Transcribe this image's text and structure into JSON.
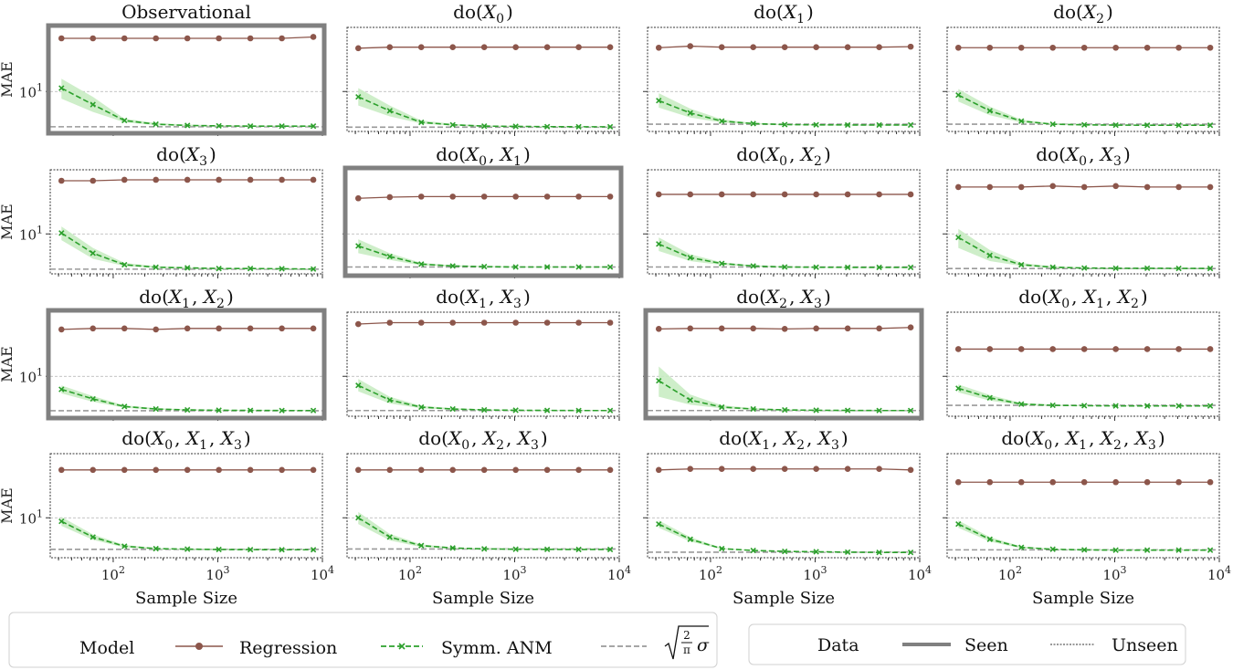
{
  "chart_data": {
    "type": "line",
    "figure": "small-multiples",
    "x_values": [
      32,
      64,
      128,
      256,
      512,
      1024,
      2048,
      4096,
      8192
    ],
    "xscale": "log",
    "xlim": [
      25,
      10000
    ],
    "xticks": [
      {
        "base": "10",
        "exp": "2"
      },
      {
        "base": "10",
        "exp": "3"
      },
      {
        "base": "10",
        "exp": "4"
      }
    ],
    "xlabel": "Sample Size",
    "yscale": "log",
    "ylabel": "MAE",
    "yticks": [
      {
        "base": "10",
        "exp": "1"
      }
    ],
    "panels": [
      {
        "id": "obs",
        "title": "Observational",
        "seen": true,
        "ylim": [
          6.3,
          21
        ],
        "regression": [
          18.5,
          18.5,
          18.5,
          18.5,
          18.5,
          18.5,
          18.5,
          18.5,
          18.8
        ],
        "anm": [
          10.4,
          8.6,
          7.15,
          6.85,
          6.75,
          6.72,
          6.7,
          6.7,
          6.7
        ],
        "anm_lower": [
          9.2,
          7.9,
          7.0,
          6.78,
          6.7,
          6.68,
          6.67,
          6.67,
          6.67
        ],
        "anm_upper": [
          11.6,
          9.4,
          7.3,
          6.95,
          6.82,
          6.77,
          6.75,
          6.74,
          6.74
        ],
        "sigma_line": 6.65
      },
      {
        "id": "x0",
        "title": "do(X_0)",
        "seen": false,
        "ylim": [
          6.3,
          21
        ],
        "regression": [
          16.5,
          16.7,
          16.7,
          16.7,
          16.7,
          16.7,
          16.7,
          16.7,
          16.7
        ],
        "anm": [
          9.4,
          8.0,
          7.0,
          6.8,
          6.7,
          6.68,
          6.66,
          6.65,
          6.65
        ],
        "anm_lower": [
          8.5,
          7.5,
          6.9,
          6.74,
          6.66,
          6.64,
          6.63,
          6.62,
          6.62
        ],
        "anm_upper": [
          10.4,
          8.5,
          7.15,
          6.88,
          6.76,
          6.72,
          6.7,
          6.69,
          6.69
        ],
        "sigma_line": 6.62
      },
      {
        "id": "x1",
        "title": "do(X_1)",
        "seen": false,
        "ylim": [
          6.3,
          21
        ],
        "regression": [
          16.6,
          16.9,
          16.7,
          16.7,
          16.7,
          16.7,
          16.7,
          16.7,
          16.8
        ],
        "anm": [
          9.0,
          7.8,
          7.1,
          6.9,
          6.82,
          6.8,
          6.79,
          6.79,
          6.79
        ],
        "anm_lower": [
          8.3,
          7.4,
          6.98,
          6.84,
          6.78,
          6.76,
          6.75,
          6.75,
          6.75
        ],
        "anm_upper": [
          9.8,
          8.2,
          7.25,
          6.96,
          6.86,
          6.83,
          6.82,
          6.82,
          6.82
        ],
        "sigma_line": 6.85
      },
      {
        "id": "x2",
        "title": "do(X_2)",
        "seen": false,
        "ylim": [
          6.3,
          21
        ],
        "regression": [
          16.6,
          16.6,
          16.6,
          16.6,
          16.6,
          16.6,
          16.6,
          16.6,
          16.6
        ],
        "anm": [
          9.6,
          8.0,
          7.1,
          6.85,
          6.8,
          6.78,
          6.77,
          6.77,
          6.77
        ],
        "anm_lower": [
          8.9,
          7.6,
          6.98,
          6.8,
          6.76,
          6.74,
          6.73,
          6.73,
          6.73
        ],
        "anm_upper": [
          10.3,
          8.4,
          7.22,
          6.92,
          6.84,
          6.81,
          6.8,
          6.8,
          6.8
        ],
        "sigma_line": 6.85
      },
      {
        "id": "x3",
        "title": "do(X_3)",
        "seen": false,
        "ylim": [
          6.3,
          21
        ],
        "regression": [
          18.5,
          18.5,
          18.7,
          18.7,
          18.7,
          18.7,
          18.7,
          18.7,
          18.7
        ],
        "anm": [
          10.1,
          8.0,
          7.0,
          6.8,
          6.75,
          6.7,
          6.7,
          6.68,
          6.66
        ],
        "anm_lower": [
          9.3,
          7.5,
          6.9,
          6.74,
          6.7,
          6.67,
          6.66,
          6.65,
          6.64
        ],
        "anm_upper": [
          10.9,
          8.5,
          7.15,
          6.88,
          6.8,
          6.75,
          6.73,
          6.71,
          6.7
        ],
        "sigma_line": 6.65
      },
      {
        "id": "x0x1",
        "title": "do(X_0, X_1)",
        "seen": true,
        "ylim": [
          6.3,
          21
        ],
        "regression": [
          15.1,
          15.3,
          15.4,
          15.4,
          15.4,
          15.4,
          15.4,
          15.4,
          15.4
        ],
        "anm": [
          8.7,
          7.7,
          7.05,
          6.9,
          6.85,
          6.82,
          6.82,
          6.82,
          6.82
        ],
        "anm_lower": [
          8.0,
          7.4,
          6.95,
          6.85,
          6.81,
          6.79,
          6.79,
          6.79,
          6.79
        ],
        "anm_upper": [
          9.4,
          8.0,
          7.15,
          6.96,
          6.89,
          6.86,
          6.85,
          6.85,
          6.85
        ],
        "sigma_line": 6.82
      },
      {
        "id": "x0x2",
        "title": "do(X_0, X_2)",
        "seen": false,
        "ylim": [
          6.3,
          21
        ],
        "regression": [
          15.8,
          15.8,
          15.8,
          15.8,
          15.8,
          15.8,
          15.8,
          15.8,
          15.8
        ],
        "anm": [
          8.9,
          7.6,
          7.1,
          6.9,
          6.82,
          6.8,
          6.79,
          6.79,
          6.79
        ],
        "anm_lower": [
          8.2,
          7.3,
          6.98,
          6.85,
          6.78,
          6.76,
          6.75,
          6.75,
          6.75
        ],
        "anm_upper": [
          9.6,
          7.9,
          7.2,
          6.96,
          6.86,
          6.83,
          6.82,
          6.82,
          6.82
        ],
        "sigma_line": 6.82
      },
      {
        "id": "x0x3",
        "title": "do(X_0, X_3)",
        "seen": false,
        "ylim": [
          6.3,
          21
        ],
        "regression": [
          17.2,
          17.2,
          17.2,
          17.4,
          17.2,
          17.4,
          17.2,
          17.2,
          17.2
        ],
        "anm": [
          9.6,
          7.8,
          7.0,
          6.8,
          6.74,
          6.72,
          6.72,
          6.71,
          6.71
        ],
        "anm_lower": [
          8.5,
          7.3,
          6.9,
          6.74,
          6.7,
          6.68,
          6.68,
          6.68,
          6.68
        ],
        "anm_upper": [
          10.6,
          8.3,
          7.15,
          6.87,
          6.79,
          6.76,
          6.75,
          6.75,
          6.75
        ],
        "sigma_line": 6.7
      },
      {
        "id": "x1x2",
        "title": "do(X_1, X_2)",
        "seen": true,
        "ylim": [
          6.3,
          21
        ],
        "regression": [
          17.2,
          17.4,
          17.4,
          17.2,
          17.4,
          17.4,
          17.4,
          17.4,
          17.4
        ],
        "anm": [
          8.6,
          7.7,
          7.05,
          6.85,
          6.78,
          6.75,
          6.74,
          6.73,
          6.73
        ],
        "anm_lower": [
          8.2,
          7.45,
          6.95,
          6.8,
          6.74,
          6.72,
          6.71,
          6.7,
          6.7
        ],
        "anm_upper": [
          9.0,
          7.95,
          7.15,
          6.92,
          6.83,
          6.79,
          6.78,
          6.77,
          6.77
        ],
        "sigma_line": 6.72
      },
      {
        "id": "x1x3",
        "title": "do(X_1, X_3)",
        "seen": false,
        "ylim": [
          6.3,
          21
        ],
        "regression": [
          18.3,
          18.6,
          18.6,
          18.6,
          18.6,
          18.6,
          18.6,
          18.6,
          18.6
        ],
        "anm": [
          9.0,
          7.6,
          7.0,
          6.85,
          6.78,
          6.75,
          6.74,
          6.73,
          6.73
        ],
        "anm_lower": [
          8.4,
          7.3,
          6.9,
          6.8,
          6.74,
          6.72,
          6.71,
          6.7,
          6.7
        ],
        "anm_upper": [
          9.7,
          7.9,
          7.1,
          6.92,
          6.82,
          6.79,
          6.77,
          6.76,
          6.76
        ],
        "sigma_line": 6.73
      },
      {
        "id": "x2x3",
        "title": "do(X_2, X_3)",
        "seen": true,
        "ylim": [
          6.3,
          21
        ],
        "regression": [
          17.3,
          17.4,
          17.4,
          17.4,
          17.3,
          17.4,
          17.4,
          17.4,
          17.6
        ],
        "anm": [
          9.5,
          7.6,
          7.0,
          6.85,
          6.78,
          6.75,
          6.74,
          6.73,
          6.73
        ],
        "anm_lower": [
          7.9,
          7.2,
          6.9,
          6.8,
          6.74,
          6.72,
          6.71,
          6.7,
          6.7
        ],
        "anm_upper": [
          11.2,
          8.1,
          7.15,
          6.92,
          6.82,
          6.79,
          6.77,
          6.76,
          6.76
        ],
        "sigma_line": 6.73
      },
      {
        "id": "x0x1x2",
        "title": "do(X_0, X_1, X_2)",
        "seen": false,
        "ylim": [
          6.3,
          21
        ],
        "regression": [
          13.7,
          13.7,
          13.7,
          13.7,
          13.7,
          13.7,
          13.7,
          13.7,
          13.7
        ],
        "anm": [
          8.7,
          7.8,
          7.25,
          7.15,
          7.12,
          7.1,
          7.1,
          7.1,
          7.1
        ],
        "anm_lower": [
          8.3,
          7.55,
          7.15,
          7.1,
          7.08,
          7.07,
          7.07,
          7.07,
          7.07
        ],
        "anm_upper": [
          9.1,
          8.05,
          7.35,
          7.2,
          7.16,
          7.13,
          7.13,
          7.13,
          7.13
        ],
        "sigma_line": 7.15
      },
      {
        "id": "x0x1x3",
        "title": "do(X_0, X_1, X_3)",
        "seen": false,
        "ylim": [
          6.3,
          21
        ],
        "regression": [
          17.4,
          17.4,
          17.4,
          17.4,
          17.4,
          17.4,
          17.4,
          17.4,
          17.4
        ],
        "anm": [
          9.6,
          8.0,
          7.2,
          7.0,
          6.96,
          6.93,
          6.92,
          6.91,
          6.91
        ],
        "anm_lower": [
          9.1,
          7.75,
          7.1,
          6.95,
          6.92,
          6.9,
          6.89,
          6.88,
          6.88
        ],
        "anm_upper": [
          10.1,
          8.25,
          7.3,
          7.05,
          7.0,
          6.96,
          6.95,
          6.94,
          6.94
        ],
        "sigma_line": 6.94
      },
      {
        "id": "x0x2x3",
        "title": "do(X_0, X_2, X_3)",
        "seen": false,
        "ylim": [
          6.3,
          21
        ],
        "regression": [
          17.4,
          17.4,
          17.4,
          17.4,
          17.4,
          17.4,
          17.4,
          17.4,
          17.4
        ],
        "anm": [
          10.0,
          8.0,
          7.25,
          7.05,
          6.98,
          6.95,
          6.94,
          6.93,
          6.93
        ],
        "anm_lower": [
          9.3,
          7.7,
          7.12,
          7.0,
          6.94,
          6.92,
          6.91,
          6.9,
          6.9
        ],
        "anm_upper": [
          10.7,
          8.3,
          7.35,
          7.1,
          7.02,
          6.98,
          6.97,
          6.96,
          6.96
        ],
        "sigma_line": 6.97
      },
      {
        "id": "x1x2x3",
        "title": "do(X_1, X_2, X_3)",
        "seen": false,
        "ylim": [
          6.3,
          21
        ],
        "regression": [
          17.4,
          17.6,
          17.6,
          17.6,
          17.6,
          17.6,
          17.6,
          17.6,
          17.4
        ],
        "anm": [
          9.3,
          7.8,
          7.0,
          6.85,
          6.78,
          6.75,
          6.72,
          6.7,
          6.7
        ],
        "anm_lower": [
          8.9,
          7.6,
          6.95,
          6.82,
          6.75,
          6.72,
          6.7,
          6.68,
          6.68
        ],
        "anm_upper": [
          9.7,
          8.0,
          7.05,
          6.88,
          6.81,
          6.78,
          6.75,
          6.72,
          6.72
        ],
        "sigma_line": 6.72
      },
      {
        "id": "x0x1x2x3",
        "title": "do(X_0, X_1, X_2, X_3)",
        "seen": false,
        "ylim": [
          6.3,
          21
        ],
        "regression": [
          15.1,
          15.1,
          15.1,
          15.1,
          15.1,
          15.1,
          15.1,
          15.1,
          15.1
        ],
        "anm": [
          9.3,
          7.8,
          7.1,
          6.95,
          6.9,
          6.88,
          6.88,
          6.88,
          6.88
        ],
        "anm_lower": [
          8.9,
          7.6,
          7.02,
          6.92,
          6.87,
          6.85,
          6.85,
          6.85,
          6.85
        ],
        "anm_upper": [
          9.7,
          8.0,
          7.18,
          6.99,
          6.93,
          6.91,
          6.91,
          6.91,
          6.91
        ],
        "sigma_line": 6.9
      }
    ],
    "legend_model": {
      "title": "Model",
      "regression_label": "Regression",
      "anm_label": "Symm. ANM",
      "sigma_num": "2",
      "sigma_den": "π",
      "sigma_symbol": "σ"
    },
    "legend_data": {
      "title": "Data",
      "seen_label": "Seen",
      "unseen_label": "Unseen"
    },
    "colors": {
      "regression": "#8c564b",
      "anm": "#2ca02c",
      "anm_band": "#c9ecc3",
      "sigma": "#999999",
      "seen_frame": "#808080",
      "grid": "#b0b0b0"
    }
  }
}
